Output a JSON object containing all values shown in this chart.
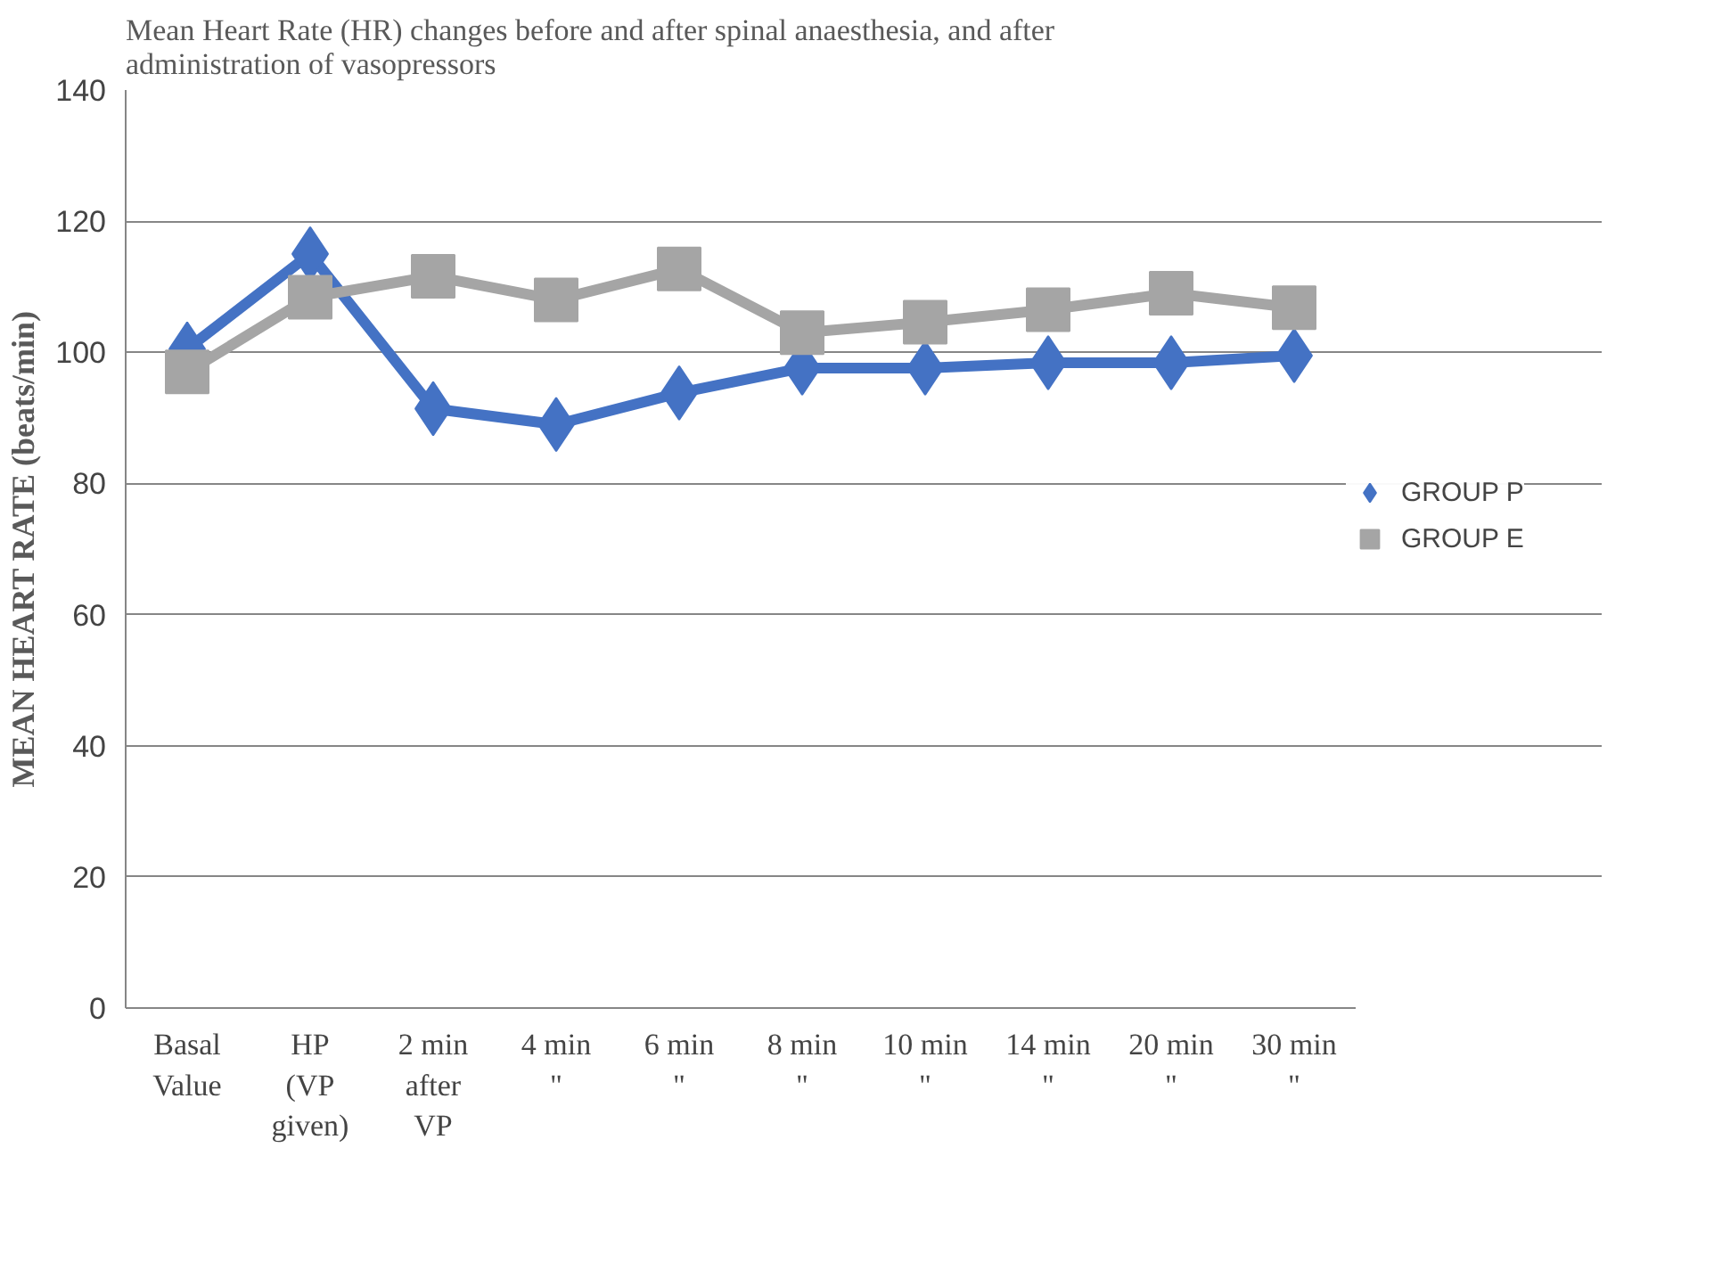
{
  "chart_data": {
    "type": "line",
    "title": "Mean Heart Rate (HR) changes before and after spinal anaesthesia, and after administration of vasopressors",
    "ylabel": "MEAN HEART RATE (beats/min)",
    "categories": [
      "Basal\nValue",
      "HP\n(VP\ngiven)",
      "2 min\nafter\nVP",
      "4 min\n\"",
      "6 min\n\"",
      "8 min\n\"",
      "10 min\n\"",
      "14 min\n\"",
      "20 min\n\"",
      "30 min\n\""
    ],
    "series": [
      {
        "name": "GROUP P",
        "color": "#4472c4",
        "marker": "diamond",
        "values": [
          100.5,
          115,
          91.4,
          89,
          93.8,
          97.6,
          97.6,
          98.4,
          98.4,
          99.5
        ]
      },
      {
        "name": "GROUP E",
        "color": "#a5a5a5",
        "marker": "square",
        "values": [
          97,
          108.4,
          111.6,
          108,
          112.7,
          103,
          104.6,
          106.5,
          109,
          106.8
        ]
      }
    ],
    "ylim": [
      0,
      140
    ],
    "yticks": [
      0,
      20,
      40,
      60,
      80,
      100,
      120,
      140
    ],
    "grid": "y",
    "legend": "right"
  }
}
